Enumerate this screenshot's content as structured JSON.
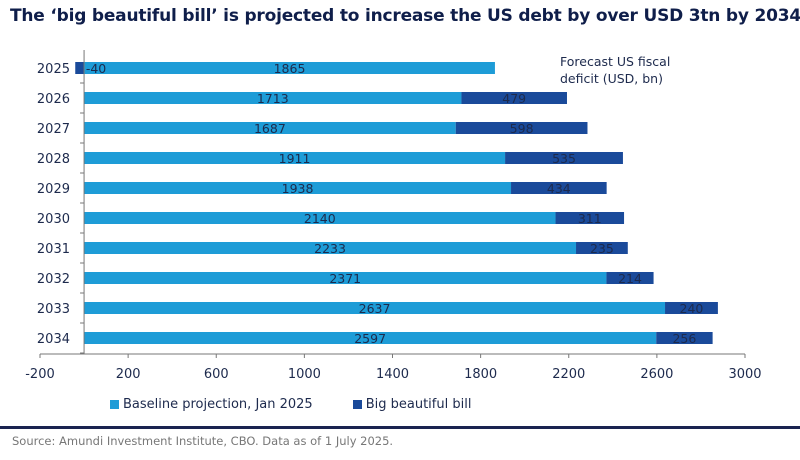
{
  "title": "The ‘big beautiful bill’ is projected to increase the US debt by over USD 3tn by 2034",
  "source": "Source: Amundi Investment Institute, CBO. Data as of 1 July 2025.",
  "chart_data": {
    "type": "bar",
    "orientation": "horizontal",
    "stacked": true,
    "annotation": "Forecast US fiscal deficit (USD, bn)",
    "categories": [
      "2025",
      "2026",
      "2027",
      "2028",
      "2029",
      "2030",
      "2031",
      "2032",
      "2033",
      "2034"
    ],
    "series": [
      {
        "name": "Baseline projection, Jan 2025",
        "color": "#1e9cd7",
        "values": [
          1865,
          1713,
          1687,
          1911,
          1938,
          2140,
          2233,
          2371,
          2637,
          2597
        ]
      },
      {
        "name": "Big beautiful bill",
        "color": "#1a4a9a",
        "values": [
          -40,
          479,
          598,
          535,
          434,
          311,
          235,
          214,
          240,
          256
        ]
      }
    ],
    "xlim": [
      -200,
      3000
    ],
    "xticks": [
      -200,
      200,
      600,
      1000,
      1400,
      1800,
      2200,
      2600,
      3000
    ],
    "grid": false,
    "legend": "bottom"
  }
}
